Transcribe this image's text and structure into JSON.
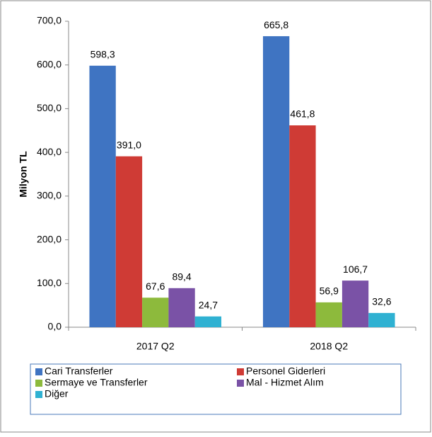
{
  "chart_data": {
    "type": "bar",
    "y_label": "Milyon TL",
    "categories": [
      "2017 Q2",
      "2018 Q2"
    ],
    "series": [
      {
        "name": "Cari Transferler",
        "color": "#3f74c2",
        "values": [
          598.3,
          665.8
        ],
        "value_labels": [
          "598,3",
          "665,8"
        ]
      },
      {
        "name": "Personel Giderleri",
        "color": "#cf3b35",
        "values": [
          391.0,
          461.8
        ],
        "value_labels": [
          "391,0",
          "461,8"
        ]
      },
      {
        "name": "Sermaye ve Transferler",
        "color": "#8dba3c",
        "values": [
          67.6,
          56.9
        ],
        "value_labels": [
          "67,6",
          "56,9"
        ]
      },
      {
        "name": "Mal - Hizmet Alım",
        "color": "#7a52a6",
        "values": [
          89.4,
          106.7
        ],
        "value_labels": [
          "89,4",
          "106,7"
        ]
      },
      {
        "name": "Diğer",
        "color": "#2fb1d2",
        "values": [
          24.7,
          32.6
        ],
        "value_labels": [
          "24,7",
          "32,6"
        ]
      }
    ],
    "ylim": [
      0,
      700
    ],
    "yticks": [
      {
        "value": 0,
        "label": "0,0"
      },
      {
        "value": 100,
        "label": "100,0"
      },
      {
        "value": 200,
        "label": "200,0"
      },
      {
        "value": 300,
        "label": "300,0"
      },
      {
        "value": 400,
        "label": "400,0"
      },
      {
        "value": 500,
        "label": "500,0"
      },
      {
        "value": 600,
        "label": "600,0"
      },
      {
        "value": 700,
        "label": "700,0"
      }
    ],
    "legend": "bottom"
  }
}
